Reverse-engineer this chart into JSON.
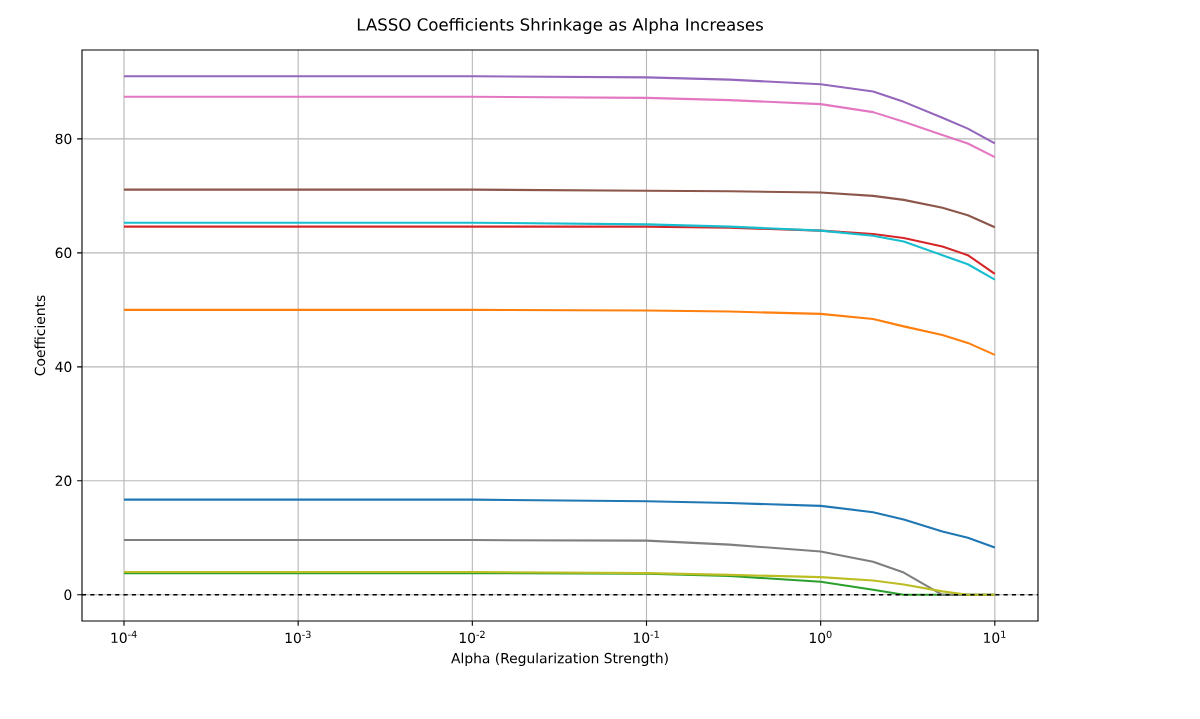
{
  "chart_data": {
    "type": "line",
    "title": "LASSO Coefficients Shrinkage as Alpha Increases",
    "xlabel": "Alpha (Regularization Strength)",
    "ylabel": "Coefficients",
    "x": [
      0.0001,
      0.001,
      0.01,
      0.1,
      0.3,
      1,
      2,
      3,
      5,
      7,
      10
    ],
    "series": [
      {
        "color": "#1f77b4",
        "values": [
          16.7,
          16.7,
          16.7,
          16.4,
          16.1,
          15.6,
          14.5,
          13.2,
          11.1,
          10.0,
          8.3
        ]
      },
      {
        "color": "#ff7f0e",
        "values": [
          50.0,
          50.0,
          50.0,
          49.9,
          49.7,
          49.3,
          48.4,
          47.1,
          45.6,
          44.2,
          42.1
        ]
      },
      {
        "color": "#2ca02c",
        "values": [
          3.8,
          3.8,
          3.8,
          3.7,
          3.3,
          2.3,
          0.9,
          0,
          0,
          0,
          0
        ]
      },
      {
        "color": "#d62728",
        "values": [
          64.6,
          64.6,
          64.6,
          64.6,
          64.4,
          63.9,
          63.3,
          62.6,
          61.1,
          59.6,
          56.3
        ]
      },
      {
        "color": "#9467bd",
        "values": [
          91.0,
          91.0,
          91.0,
          90.8,
          90.4,
          89.6,
          88.3,
          86.5,
          83.7,
          81.8,
          79.2
        ]
      },
      {
        "color": "#8c564b",
        "values": [
          71.1,
          71.1,
          71.1,
          70.9,
          70.8,
          70.6,
          70.0,
          69.3,
          67.9,
          66.6,
          64.5
        ]
      },
      {
        "color": "#e377c2",
        "values": [
          87.4,
          87.4,
          87.4,
          87.2,
          86.8,
          86.1,
          84.7,
          83.0,
          80.7,
          79.2,
          76.8
        ]
      },
      {
        "color": "#7f7f7f",
        "values": [
          9.6,
          9.6,
          9.6,
          9.5,
          8.8,
          7.6,
          5.8,
          3.9,
          0,
          0,
          0
        ]
      },
      {
        "color": "#bcbd22",
        "values": [
          4.0,
          4.0,
          4.0,
          3.8,
          3.5,
          3.1,
          2.5,
          1.8,
          0.6,
          0,
          0
        ]
      },
      {
        "color": "#17becf",
        "values": [
          65.3,
          65.3,
          65.3,
          65.0,
          64.6,
          63.9,
          63.0,
          62.0,
          59.6,
          58.0,
          55.3
        ]
      }
    ],
    "log": "x",
    "xlim": [
      5.74e-05,
      17.7
    ],
    "xticks": [
      {
        "value": 0.0001,
        "label": "10$^{-4}$"
      },
      {
        "value": 0.001,
        "label": "10$^{-3}$"
      },
      {
        "value": 0.01,
        "label": "10$^{-2}$"
      },
      {
        "value": 0.1,
        "label": "10$^{-1}$"
      },
      {
        "value": 1,
        "label": "10$^{0}$"
      },
      {
        "value": 10,
        "label": "10$^{1}$"
      }
    ],
    "ylim": [
      -4.6,
      95.6
    ],
    "yticks": [
      0,
      20,
      40,
      60,
      80
    ],
    "grid": true,
    "ref_lines": [
      {
        "axis": "y",
        "value": 0,
        "color": "#000000",
        "line_style": "dashed"
      }
    ]
  }
}
